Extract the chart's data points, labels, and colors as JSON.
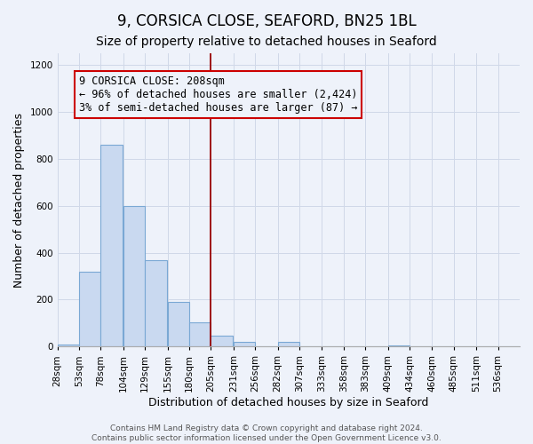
{
  "title": "9, CORSICA CLOSE, SEAFORD, BN25 1BL",
  "subtitle": "Size of property relative to detached houses in Seaford",
  "xlabel": "Distribution of detached houses by size in Seaford",
  "ylabel": "Number of detached properties",
  "bin_labels": [
    "28sqm",
    "53sqm",
    "78sqm",
    "104sqm",
    "129sqm",
    "155sqm",
    "180sqm",
    "205sqm",
    "231sqm",
    "256sqm",
    "282sqm",
    "307sqm",
    "333sqm",
    "358sqm",
    "383sqm",
    "409sqm",
    "434sqm",
    "460sqm",
    "485sqm",
    "511sqm",
    "536sqm"
  ],
  "bin_edges": [
    28,
    53,
    78,
    104,
    129,
    155,
    180,
    205,
    231,
    256,
    282,
    307,
    333,
    358,
    383,
    409,
    434,
    460,
    485,
    511,
    536
  ],
  "bar_heights": [
    10,
    320,
    860,
    600,
    370,
    190,
    105,
    48,
    20,
    0,
    20,
    0,
    0,
    0,
    0,
    5,
    0,
    0,
    0,
    0,
    0
  ],
  "bar_color": "#c9d9f0",
  "bar_edge_color": "#7aa8d4",
  "grid_color": "#d0d8e8",
  "vline_x": 205,
  "vline_color": "#990000",
  "annotation_line1": "9 CORSICA CLOSE: 208sqm",
  "annotation_line2": "← 96% of detached houses are smaller (2,424)",
  "annotation_line3": "3% of semi-detached houses are larger (87) →",
  "annotation_box_edge_color": "#cc0000",
  "annotation_text_color": "#000000",
  "ylim": [
    0,
    1250
  ],
  "yticks": [
    0,
    200,
    400,
    600,
    800,
    1000,
    1200
  ],
  "footer1": "Contains HM Land Registry data © Crown copyright and database right 2024.",
  "footer2": "Contains public sector information licensed under the Open Government Licence v3.0.",
  "background_color": "#eef2fa",
  "title_fontsize": 12,
  "subtitle_fontsize": 10,
  "axis_label_fontsize": 9,
  "tick_fontsize": 7.5,
  "annotation_fontsize": 8.5,
  "footer_fontsize": 6.5
}
